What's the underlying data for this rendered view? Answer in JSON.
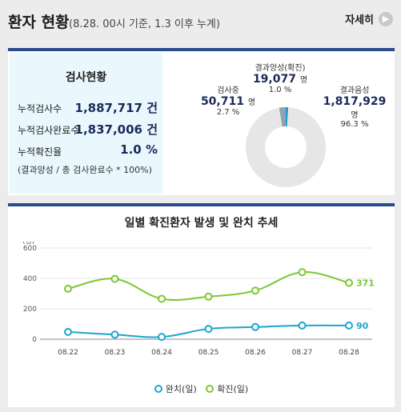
{
  "header": {
    "title": "환자 현황",
    "subtitle": "(8.28. 00시 기준, 1.3 이후 누계)",
    "more_label": "자세히",
    "more_icon": "chevron-right-icon"
  },
  "stats": {
    "title": "검사현황",
    "rows": [
      {
        "label": "누적검사수",
        "value": "1,887,717 건"
      },
      {
        "label": "누적검사완료수",
        "value": "1,837,006 건"
      },
      {
        "label": "누적확진율",
        "value": "1.0 %"
      }
    ],
    "note": "(결과양성 / 총 검사완료수 * 100%)"
  },
  "donut": {
    "slices": [
      {
        "name": "결과양성(확진)",
        "value": "19,077",
        "unit": "명",
        "percent": "1.0 %",
        "share": 1.0,
        "color": "#1b9ad6"
      },
      {
        "name": "결과음성",
        "value": "1,817,929",
        "unit": "명",
        "percent": "96.3 %",
        "share": 96.3,
        "color": "#e6e6e6"
      },
      {
        "name": "검사중",
        "value": "50,711",
        "unit": "명",
        "percent": "2.7 %",
        "share": 2.7,
        "color": "#8fa3ad"
      }
    ]
  },
  "chart_data": {
    "type": "line",
    "title": "일별 확진환자 발생 및 완치 추세",
    "ylabel": "(명)",
    "ylim": [
      0,
      600
    ],
    "yticks": [
      "0",
      "200",
      "400",
      "600"
    ],
    "categories": [
      "08.22",
      "08.23",
      "08.24",
      "08.25",
      "08.26",
      "08.27",
      "08.28"
    ],
    "series": [
      {
        "name": "완치(일)",
        "color": "#1ba6cf",
        "values": [
          48,
          30,
          15,
          68,
          80,
          90,
          90
        ],
        "end_label": "90"
      },
      {
        "name": "확진(일)",
        "color": "#7cc832",
        "values": [
          332,
          397,
          266,
          280,
          320,
          441,
          371
        ],
        "end_label": "371"
      }
    ]
  }
}
